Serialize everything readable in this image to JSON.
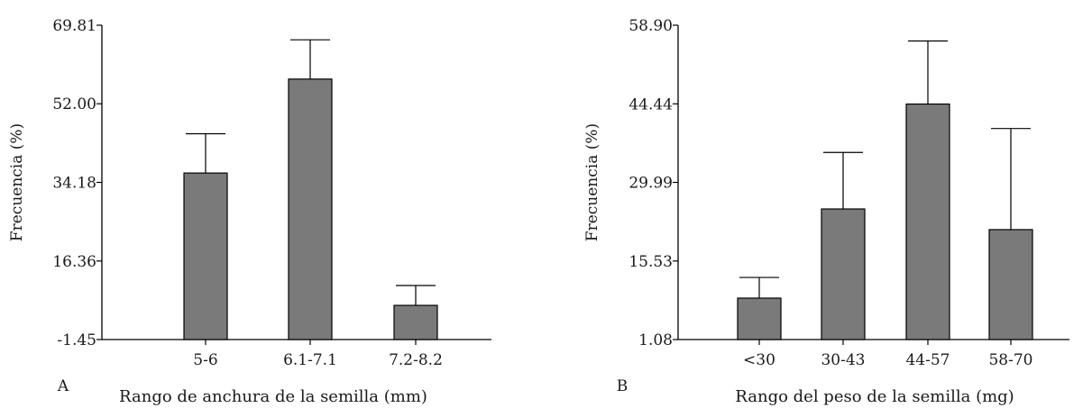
{
  "chart_data": [
    {
      "type": "bar",
      "panel_label": "A",
      "xlabel": "Rango de anchura de la semilla (mm)",
      "ylabel": "Frecuencia (%)",
      "ylim": [
        -1.45,
        69.81
      ],
      "yticks": [
        "-1.45",
        "16.36",
        "34.18",
        "52.00",
        "69.81"
      ],
      "categories": [
        "5-6",
        "6.1-7.1",
        "7.2-8.2"
      ],
      "values": [
        36.3,
        57.6,
        6.3
      ],
      "errors_upper": [
        45.2,
        66.5,
        10.8
      ],
      "bar_color": "#7a7a7a",
      "grid": false,
      "legend": "none"
    },
    {
      "type": "bar",
      "panel_label": "B",
      "xlabel": "Rango del peso de la semilla (mg)",
      "ylabel": "Frecuencia (%)",
      "ylim": [
        1.08,
        58.9
      ],
      "yticks": [
        "1.08",
        "15.53",
        "29.99",
        "44.44",
        "58.90"
      ],
      "categories": [
        "<30",
        "30-43",
        "44-57",
        "58-70"
      ],
      "values": [
        8.7,
        25.1,
        44.4,
        21.3
      ],
      "errors_upper": [
        12.5,
        35.5,
        56.0,
        39.9
      ],
      "bar_color": "#7a7a7a",
      "grid": false,
      "legend": "none"
    }
  ]
}
